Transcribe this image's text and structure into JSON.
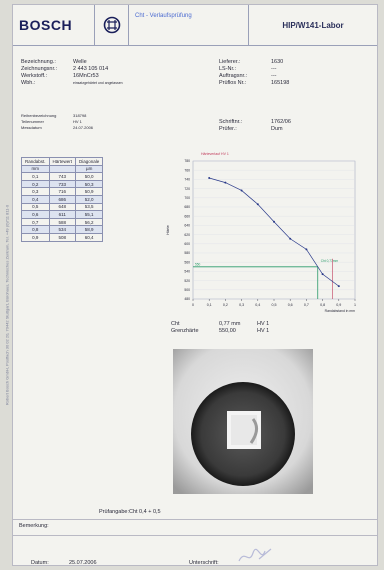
{
  "header": {
    "logo": "BOSCH",
    "title": "Cht - Verlaufsprüfung",
    "lab": "HIP/W141-Labor"
  },
  "side_text": "Robert Bosch GmbH, Postfach 30 02 20, 70442 Stuttgart, Bürohaus, Technisches Zentrum, Tel. +49 (0)711 811-0",
  "part": {
    "rows": [
      {
        "k": "Bezeichnung.:",
        "v": "Welle"
      },
      {
        "k": "Zeichnungsnr.:",
        "v": "2 443 105 014"
      },
      {
        "k": "Werkstoff.:",
        "v": "16MnCr53"
      },
      {
        "k": "Wbh.:",
        "v": "einsatzgehärtet und angelassen"
      }
    ]
  },
  "supplier": {
    "rows": [
      {
        "k": "Lieferer.:",
        "v": "1630"
      },
      {
        "k": "LS-Nr.:",
        "v": "---"
      },
      {
        "k": "Auftragsnr.:",
        "v": "---"
      },
      {
        "k": "Prüflos Nr.:",
        "v": "165198"
      }
    ]
  },
  "sample": {
    "rows": [
      {
        "k": "Reihenbezeichnung",
        "v": "318798"
      },
      {
        "k": "Teilenummer",
        "v": "HV 1"
      },
      {
        "k": "Messdatum",
        "v": "24.07.2006"
      }
    ]
  },
  "report": {
    "rows": [
      {
        "k": "Schriftnr.:",
        "v": "1762/06"
      },
      {
        "k": "Prüfer.:",
        "v": "Dum"
      }
    ]
  },
  "table": {
    "headers": [
      "Randabst.",
      "Härtewert",
      "Diagonale"
    ],
    "units": [
      "mm",
      "",
      "µm"
    ],
    "rows": [
      [
        "0,1",
        "743",
        "50,0"
      ],
      [
        "0,2",
        "733",
        "50,3"
      ],
      [
        "0,3",
        "716",
        "50,9"
      ],
      [
        "0,4",
        "686",
        "52,0"
      ],
      [
        "0,5",
        "648",
        "53,5"
      ],
      [
        "0,6",
        "611",
        "55,1"
      ],
      [
        "0,7",
        "588",
        "56,2"
      ],
      [
        "0,8",
        "534",
        "58,9"
      ],
      [
        "0,9",
        "508",
        "60,4"
      ]
    ]
  },
  "chart_data": {
    "type": "line",
    "title": "Härteverlauf HV 1",
    "ylabel": "Härte",
    "xlabel": "Randabstand in mm",
    "x": [
      0.1,
      0.2,
      0.3,
      0.4,
      0.5,
      0.6,
      0.7,
      0.8,
      0.9
    ],
    "y": [
      743,
      733,
      716,
      686,
      648,
      611,
      588,
      534,
      508
    ],
    "xlim": [
      0,
      1
    ],
    "ylim": [
      480,
      780
    ],
    "yticks": [
      780,
      760,
      740,
      720,
      700,
      680,
      660,
      640,
      620,
      600,
      580,
      560,
      540,
      520,
      500,
      480
    ],
    "xticks": [
      "0",
      "0,1",
      "0,2",
      "0,3",
      "0,4",
      "0,5",
      "0,6",
      "0,7",
      "0,8",
      "0,9",
      "1"
    ],
    "limit_label": "550",
    "cht_label": "Cht 0,77mm",
    "colors": {
      "line": "#2a3a8a",
      "limit": "#2a9a6a",
      "marker": "#c03a5a"
    }
  },
  "result": {
    "rows": [
      {
        "k": "Cht",
        "v": "0,77 mm",
        "u": "HV 1"
      },
      {
        "k": "Grenzhärte",
        "v": "550,00",
        "u": "HV 1"
      }
    ]
  },
  "footer": {
    "pruefangabe": "Prüfangabe:Cht 0,4 + 0,5",
    "bemerkung": "Bemerkung:",
    "datum_label": "Datum:",
    "datum": "25.07.2006",
    "unterschrift_label": "Unterschrift:"
  }
}
